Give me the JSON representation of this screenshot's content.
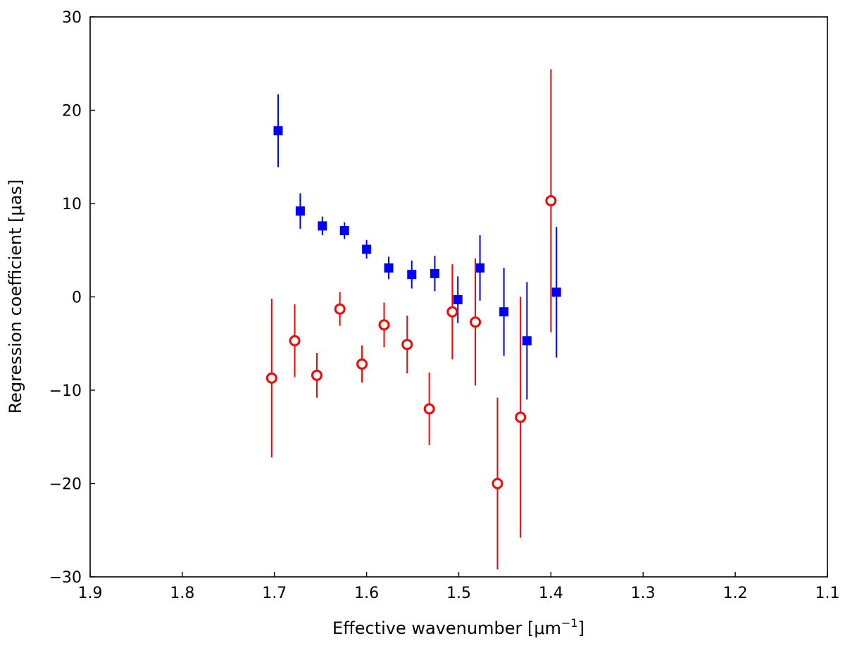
{
  "chart_data": {
    "type": "scatter",
    "title": "",
    "xlabel_main": "Effective wavenumber [",
    "xlabel_unit": "μm",
    "xlabel_exp": "−1",
    "xlabel_close": "]",
    "ylabel_main": "Regression coefficient [",
    "ylabel_unit": "μas",
    "ylabel_close": "]",
    "xlim": [
      1.9,
      1.1
    ],
    "ylim": [
      -30,
      30
    ],
    "x_ticks": [
      1.9,
      1.8,
      1.7,
      1.6,
      1.5,
      1.4,
      1.3,
      1.2,
      1.1
    ],
    "x_tick_labels": [
      "1.9",
      "1.8",
      "1.7",
      "1.6",
      "1.5",
      "1.4",
      "1.3",
      "1.2",
      "1.1"
    ],
    "y_ticks": [
      30,
      20,
      10,
      0,
      -10,
      -20,
      -30
    ],
    "y_tick_labels": [
      "30",
      "20",
      "10",
      "0",
      "−10",
      "−20",
      "−30"
    ],
    "grid": false,
    "series": [
      {
        "name": "blue squares",
        "marker": "square",
        "color": "#0000ff",
        "points": [
          {
            "x": 1.696,
            "y": 17.8,
            "err": 3.9
          },
          {
            "x": 1.672,
            "y": 9.2,
            "err": 1.9
          },
          {
            "x": 1.648,
            "y": 7.6,
            "err": 1.0
          },
          {
            "x": 1.624,
            "y": 7.1,
            "err": 0.9
          },
          {
            "x": 1.6,
            "y": 5.1,
            "err": 1.0
          },
          {
            "x": 1.576,
            "y": 3.1,
            "err": 1.2
          },
          {
            "x": 1.551,
            "y": 2.4,
            "err": 1.5
          },
          {
            "x": 1.526,
            "y": 2.5,
            "err": 1.9
          },
          {
            "x": 1.501,
            "y": -0.3,
            "err": 2.5
          },
          {
            "x": 1.477,
            "y": 3.1,
            "err": 3.5
          },
          {
            "x": 1.451,
            "y": -1.6,
            "err": 4.7
          },
          {
            "x": 1.426,
            "y": -4.7,
            "err": 6.3
          },
          {
            "x": 1.394,
            "y": 0.5,
            "err": 7.0
          }
        ]
      },
      {
        "name": "red circles",
        "marker": "open-circle",
        "color": "#ff0000",
        "points": [
          {
            "x": 1.703,
            "y": -8.7,
            "err": 8.5
          },
          {
            "x": 1.678,
            "y": -4.7,
            "err": 3.9
          },
          {
            "x": 1.654,
            "y": -8.4,
            "err": 2.4
          },
          {
            "x": 1.629,
            "y": -1.3,
            "err": 1.8
          },
          {
            "x": 1.605,
            "y": -7.2,
            "err": 2.0
          },
          {
            "x": 1.581,
            "y": -3.0,
            "err": 2.4
          },
          {
            "x": 1.556,
            "y": -5.1,
            "err": 3.1
          },
          {
            "x": 1.532,
            "y": -12.0,
            "err": 3.9
          },
          {
            "x": 1.507,
            "y": -1.6,
            "err": 5.1
          },
          {
            "x": 1.482,
            "y": -2.7,
            "err": 6.8
          },
          {
            "x": 1.458,
            "y": -20.0,
            "err": 9.2
          },
          {
            "x": 1.433,
            "y": -12.9,
            "err": 12.9
          },
          {
            "x": 1.4,
            "y": 10.3,
            "err": 14.1
          }
        ]
      }
    ]
  }
}
